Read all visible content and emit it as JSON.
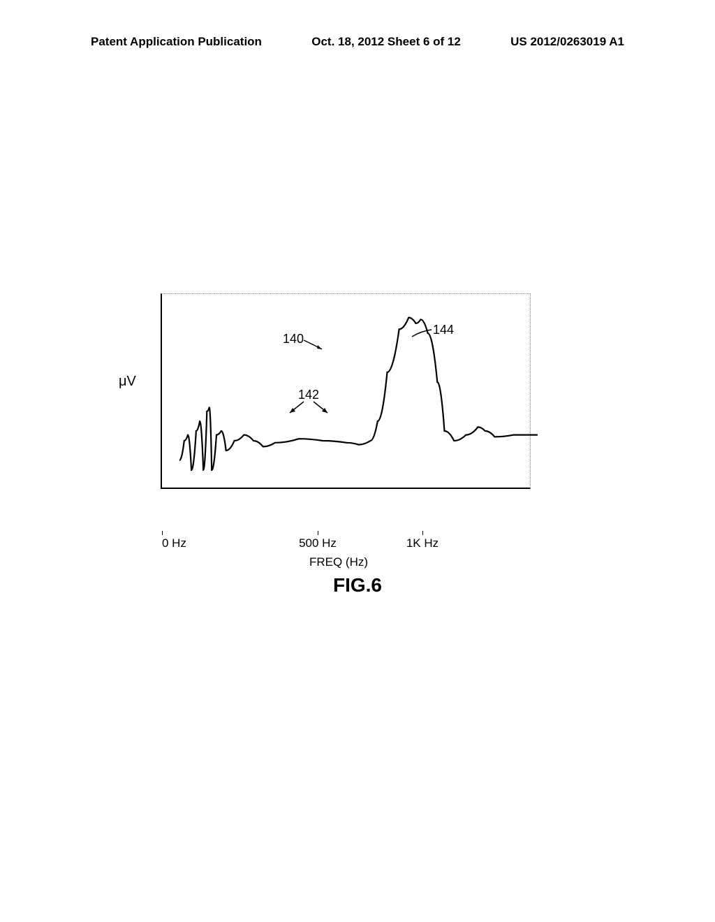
{
  "header": {
    "left": "Patent Application Publication",
    "center": "Oct. 18, 2012  Sheet 6 of 12",
    "right": "US 2012/0263019 A1"
  },
  "chart": {
    "type": "line",
    "y_label": "μV",
    "x_label": "FREQ (Hz)",
    "x_ticks": [
      "0 Hz",
      "500 Hz",
      "1K Hz"
    ],
    "xlim": [
      0,
      1550
    ],
    "ylim": [
      0,
      100
    ],
    "curve_color": "#000000",
    "curve_stroke_width": 2.2,
    "background_color": "#ffffff",
    "border_style": {
      "left": "solid",
      "bottom": "solid",
      "top": "dotted",
      "right": "dotted"
    },
    "data_points": [
      {
        "x": 0,
        "y": 15
      },
      {
        "x": 20,
        "y": 25
      },
      {
        "x": 35,
        "y": 28
      },
      {
        "x": 50,
        "y": 10
      },
      {
        "x": 70,
        "y": 30
      },
      {
        "x": 85,
        "y": 35
      },
      {
        "x": 100,
        "y": 10
      },
      {
        "x": 115,
        "y": 40
      },
      {
        "x": 125,
        "y": 42
      },
      {
        "x": 135,
        "y": 10
      },
      {
        "x": 155,
        "y": 28
      },
      {
        "x": 175,
        "y": 30
      },
      {
        "x": 195,
        "y": 20
      },
      {
        "x": 230,
        "y": 25
      },
      {
        "x": 270,
        "y": 28
      },
      {
        "x": 310,
        "y": 25
      },
      {
        "x": 350,
        "y": 22
      },
      {
        "x": 400,
        "y": 24
      },
      {
        "x": 500,
        "y": 26
      },
      {
        "x": 600,
        "y": 25
      },
      {
        "x": 700,
        "y": 24
      },
      {
        "x": 750,
        "y": 23
      },
      {
        "x": 800,
        "y": 25
      },
      {
        "x": 830,
        "y": 35
      },
      {
        "x": 870,
        "y": 60
      },
      {
        "x": 920,
        "y": 82
      },
      {
        "x": 960,
        "y": 88
      },
      {
        "x": 990,
        "y": 85
      },
      {
        "x": 1010,
        "y": 87
      },
      {
        "x": 1040,
        "y": 80
      },
      {
        "x": 1080,
        "y": 55
      },
      {
        "x": 1110,
        "y": 30
      },
      {
        "x": 1150,
        "y": 25
      },
      {
        "x": 1200,
        "y": 28
      },
      {
        "x": 1250,
        "y": 32
      },
      {
        "x": 1280,
        "y": 30
      },
      {
        "x": 1320,
        "y": 27
      },
      {
        "x": 1400,
        "y": 28
      },
      {
        "x": 1500,
        "y": 28
      }
    ]
  },
  "annotations": {
    "ref_140": "140",
    "ref_142": "142",
    "ref_144": "144"
  },
  "figure_label": "FIG.6",
  "fonts": {
    "header_size_pt": 17,
    "label_size_pt": 17,
    "annotation_size_pt": 18,
    "figure_label_size_pt": 28
  },
  "colors": {
    "text": "#000000",
    "background": "#ffffff",
    "dotted_border": "#888888"
  }
}
